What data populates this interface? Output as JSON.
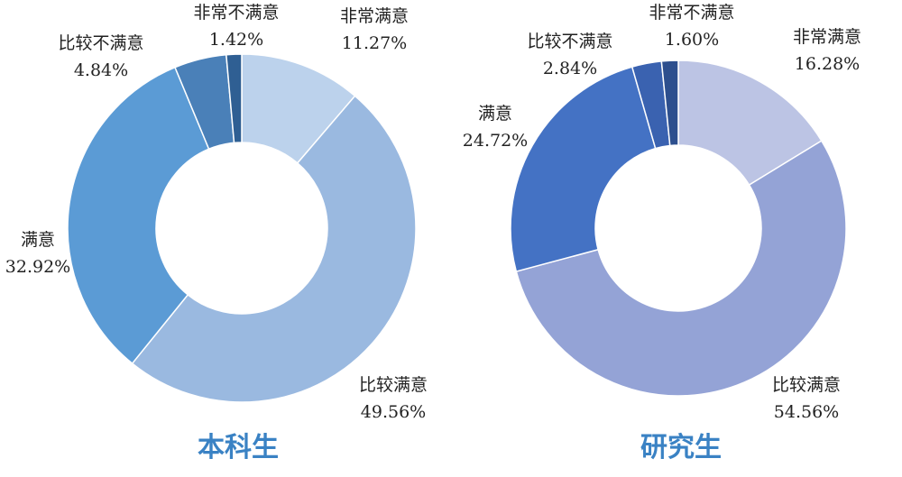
{
  "chart_data": [
    {
      "type": "pie",
      "variant": "donut",
      "title": "本科生",
      "title_color": "#3a82c4",
      "slices": [
        {
          "label": "非常满意",
          "value": 11.27,
          "display": "11.27%",
          "color": "#bcd2ec"
        },
        {
          "label": "比较满意",
          "value": 49.56,
          "display": "49.56%",
          "color": "#9ab9e0"
        },
        {
          "label": "满意",
          "value": 32.92,
          "display": "32.92%",
          "color": "#5b9bd5"
        },
        {
          "label": "比较不满意",
          "value": 4.84,
          "display": "4.84%",
          "color": "#4a80b8"
        },
        {
          "label": "非常不满意",
          "value": 1.42,
          "display": "1.42%",
          "color": "#2f5f93"
        }
      ]
    },
    {
      "type": "pie",
      "variant": "donut",
      "title": "研究生",
      "title_color": "#3a82c4",
      "slices": [
        {
          "label": "非常满意",
          "value": 16.28,
          "display": "16.28%",
          "color": "#bcc4e4"
        },
        {
          "label": "比较满意",
          "value": 54.56,
          "display": "54.56%",
          "color": "#94a3d6"
        },
        {
          "label": "满意",
          "value": 24.72,
          "display": "24.72%",
          "color": "#4472c4"
        },
        {
          "label": "比较不满意",
          "value": 2.84,
          "display": "2.84%",
          "color": "#3a62b0"
        },
        {
          "label": "非常不满意",
          "value": 1.6,
          "display": "1.60%",
          "color": "#2d4f8e"
        }
      ]
    }
  ]
}
